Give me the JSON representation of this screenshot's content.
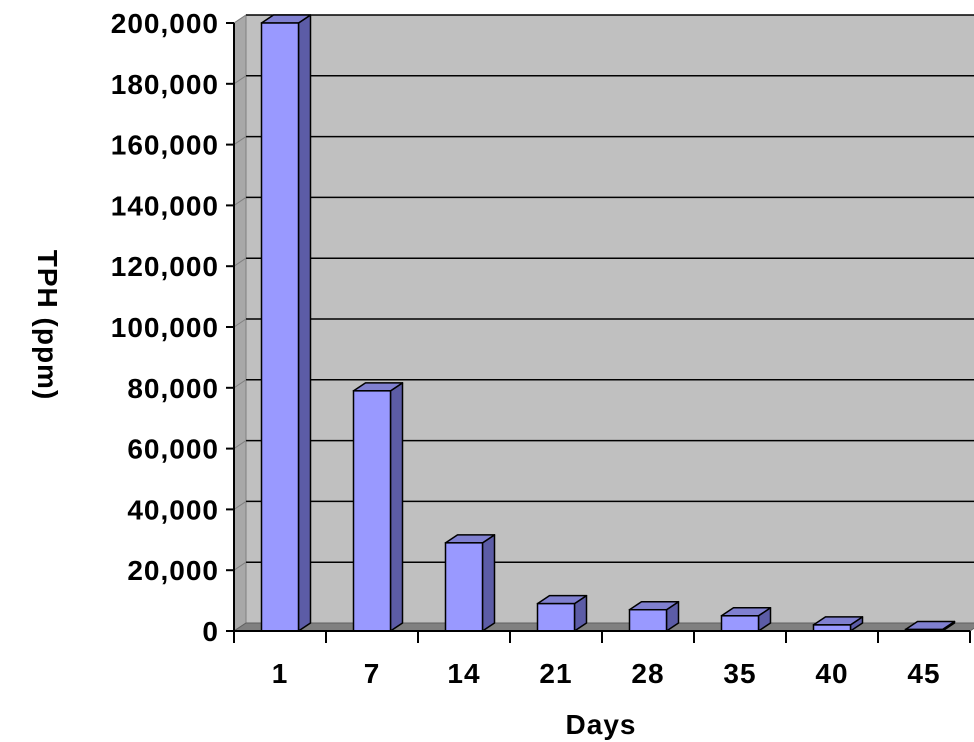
{
  "chart_data": {
    "type": "bar",
    "categories": [
      "1",
      "7",
      "14",
      "21",
      "28",
      "35",
      "40",
      "45"
    ],
    "values": [
      200000,
      79000,
      29000,
      9000,
      7000,
      5000,
      2000,
      500
    ],
    "xlabel": "Days",
    "ylabel": "TPH (ppm)",
    "ylim": [
      0,
      200000
    ],
    "yticks": [
      0,
      20000,
      40000,
      60000,
      80000,
      100000,
      120000,
      140000,
      160000,
      180000,
      200000
    ],
    "ytick_labels": [
      "0",
      "20,000",
      "40,000",
      "60,000",
      "80,000",
      "100,000",
      "120,000",
      "140,000",
      "160,000",
      "180,000",
      "200,000"
    ],
    "grid": true,
    "style": "3d-bar",
    "legend": "none",
    "colors": {
      "bar_front": "#9999ff",
      "bar_side": "#5c5ca6",
      "bar_top": "#8080d0",
      "plot_background": "#c0c0c0",
      "floor": "#808080",
      "gridline": "#000000"
    }
  }
}
